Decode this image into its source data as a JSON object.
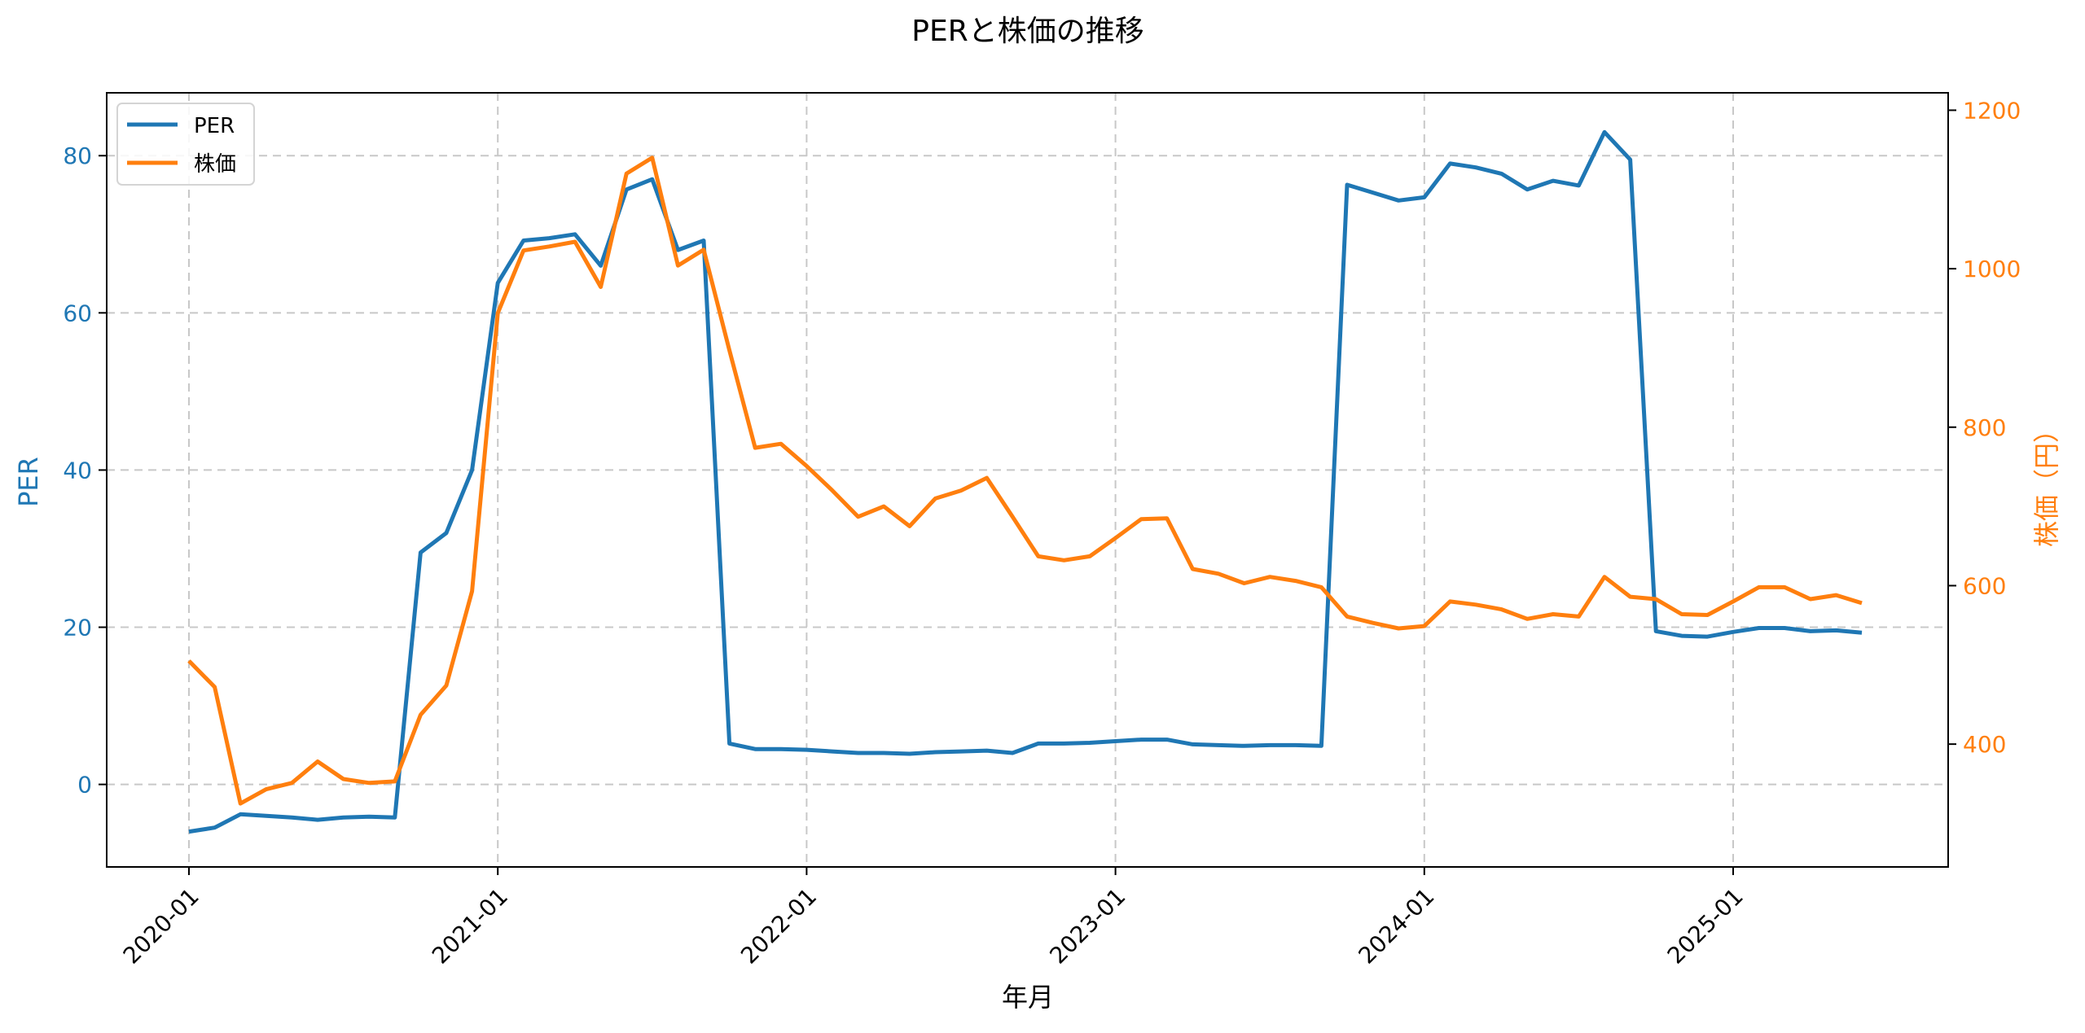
{
  "chart_data": {
    "type": "line",
    "title": "PERと株価の推移",
    "xlabel": "年月",
    "ylabel": "PER",
    "ylabel_right": "株価（円）",
    "x_ticks": [
      "2020-01",
      "2021-01",
      "2022-01",
      "2023-01",
      "2024-01",
      "2025-01"
    ],
    "y_ticks_left": [
      0,
      20,
      40,
      60,
      80
    ],
    "y_ticks_right": [
      400,
      600,
      800,
      1000,
      1200
    ],
    "ylim_left": [
      -10.5,
      88
    ],
    "ylim_right": [
      245,
      1222
    ],
    "grid": true,
    "legend_position": "upper left",
    "x": [
      "2020-01",
      "2020-02",
      "2020-03",
      "2020-04",
      "2020-05",
      "2020-06",
      "2020-07",
      "2020-08",
      "2020-09",
      "2020-10",
      "2020-11",
      "2020-12",
      "2021-01",
      "2021-02",
      "2021-03",
      "2021-04",
      "2021-05",
      "2021-06",
      "2021-07",
      "2021-08",
      "2021-09",
      "2021-10",
      "2021-11",
      "2021-12",
      "2022-01",
      "2022-02",
      "2022-03",
      "2022-04",
      "2022-05",
      "2022-06",
      "2022-07",
      "2022-08",
      "2022-09",
      "2022-10",
      "2022-11",
      "2022-12",
      "2023-01",
      "2023-02",
      "2023-03",
      "2023-04",
      "2023-05",
      "2023-06",
      "2023-07",
      "2023-08",
      "2023-09",
      "2023-10",
      "2023-11",
      "2023-12",
      "2024-01",
      "2024-02",
      "2024-03",
      "2024-04",
      "2024-05",
      "2024-06",
      "2024-07",
      "2024-08",
      "2024-09",
      "2024-10",
      "2024-11",
      "2024-12",
      "2025-01",
      "2025-02",
      "2025-03",
      "2025-04",
      "2025-05",
      "2025-06"
    ],
    "series": [
      {
        "name": "PER",
        "axis": "left",
        "color": "#1f77b4",
        "values": [
          -6.0,
          -5.5,
          -3.8,
          -4.0,
          -4.2,
          -4.5,
          -4.2,
          -4.1,
          -4.2,
          29.5,
          32.0,
          40.0,
          63.8,
          69.2,
          69.5,
          70.0,
          66.0,
          75.7,
          77.0,
          68.0,
          69.2,
          5.2,
          4.5,
          4.5,
          4.4,
          4.2,
          4.0,
          4.0,
          3.9,
          4.1,
          4.2,
          4.3,
          4.0,
          5.2,
          5.2,
          5.3,
          5.5,
          5.7,
          5.7,
          5.1,
          5.0,
          4.9,
          5.0,
          5.0,
          4.9,
          76.3,
          75.3,
          74.3,
          74.7,
          79.0,
          78.5,
          77.7,
          75.7,
          76.8,
          76.2,
          83.0,
          79.5,
          19.5,
          18.9,
          18.8,
          19.4,
          19.9,
          19.9,
          19.5,
          19.6,
          19.3
        ]
      },
      {
        "name": "株価",
        "axis": "right",
        "color": "#ff7f0e",
        "values": [
          505,
          472,
          325,
          343,
          351,
          378,
          356,
          351,
          353,
          437,
          474,
          593,
          944,
          1023,
          1028,
          1034,
          977,
          1120,
          1140,
          1004,
          1024,
          897,
          774,
          779,
          751,
          720,
          687,
          700,
          675,
          710,
          720,
          736,
          687,
          637,
          632,
          637,
          660,
          684,
          685,
          621,
          615,
          603,
          611,
          606,
          598,
          561,
          553,
          546,
          549,
          580,
          576,
          570,
          558,
          564,
          561,
          611,
          586,
          583,
          564,
          563,
          580,
          598,
          598,
          583,
          588,
          578
        ]
      }
    ]
  },
  "colors": {
    "per": "#1f77b4",
    "price": "#ff7f0e",
    "grid": "#c8c8c8",
    "axis": "#000000"
  },
  "legend": {
    "items": [
      {
        "label": "PER",
        "color": "#1f77b4"
      },
      {
        "label": "株価",
        "color": "#ff7f0e"
      }
    ]
  }
}
